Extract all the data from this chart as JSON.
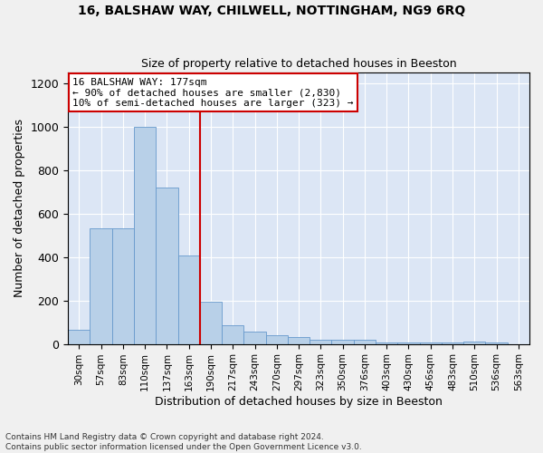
{
  "title1": "16, BALSHAW WAY, CHILWELL, NOTTINGHAM, NG9 6RQ",
  "title2": "Size of property relative to detached houses in Beeston",
  "xlabel": "Distribution of detached houses by size in Beeston",
  "ylabel": "Number of detached properties",
  "footnote": "Contains HM Land Registry data © Crown copyright and database right 2024.\nContains public sector information licensed under the Open Government Licence v3.0.",
  "bin_labels": [
    "30sqm",
    "57sqm",
    "83sqm",
    "110sqm",
    "137sqm",
    "163sqm",
    "190sqm",
    "217sqm",
    "243sqm",
    "270sqm",
    "297sqm",
    "323sqm",
    "350sqm",
    "376sqm",
    "403sqm",
    "430sqm",
    "456sqm",
    "483sqm",
    "510sqm",
    "536sqm",
    "563sqm"
  ],
  "bar_values": [
    65,
    530,
    530,
    1000,
    720,
    405,
    195,
    85,
    58,
    40,
    30,
    18,
    18,
    20,
    5,
    5,
    5,
    5,
    12,
    5,
    0
  ],
  "bar_color": "#b8d0e8",
  "bar_edge_color": "#6699cc",
  "vline_x_left_edge": 5.5,
  "vline_color": "#cc0000",
  "annotation_title": "16 BALSHAW WAY: 177sqm",
  "annotation_line1": "← 90% of detached houses are smaller (2,830)",
  "annotation_line2": "10% of semi-detached houses are larger (323) →",
  "annotation_box_color": "#cc0000",
  "ylim": [
    0,
    1250
  ],
  "yticks": [
    0,
    200,
    400,
    600,
    800,
    1000,
    1200
  ],
  "background_color": "#dce6f5",
  "grid_color": "#ffffff",
  "fig_bg": "#f0f0f0"
}
